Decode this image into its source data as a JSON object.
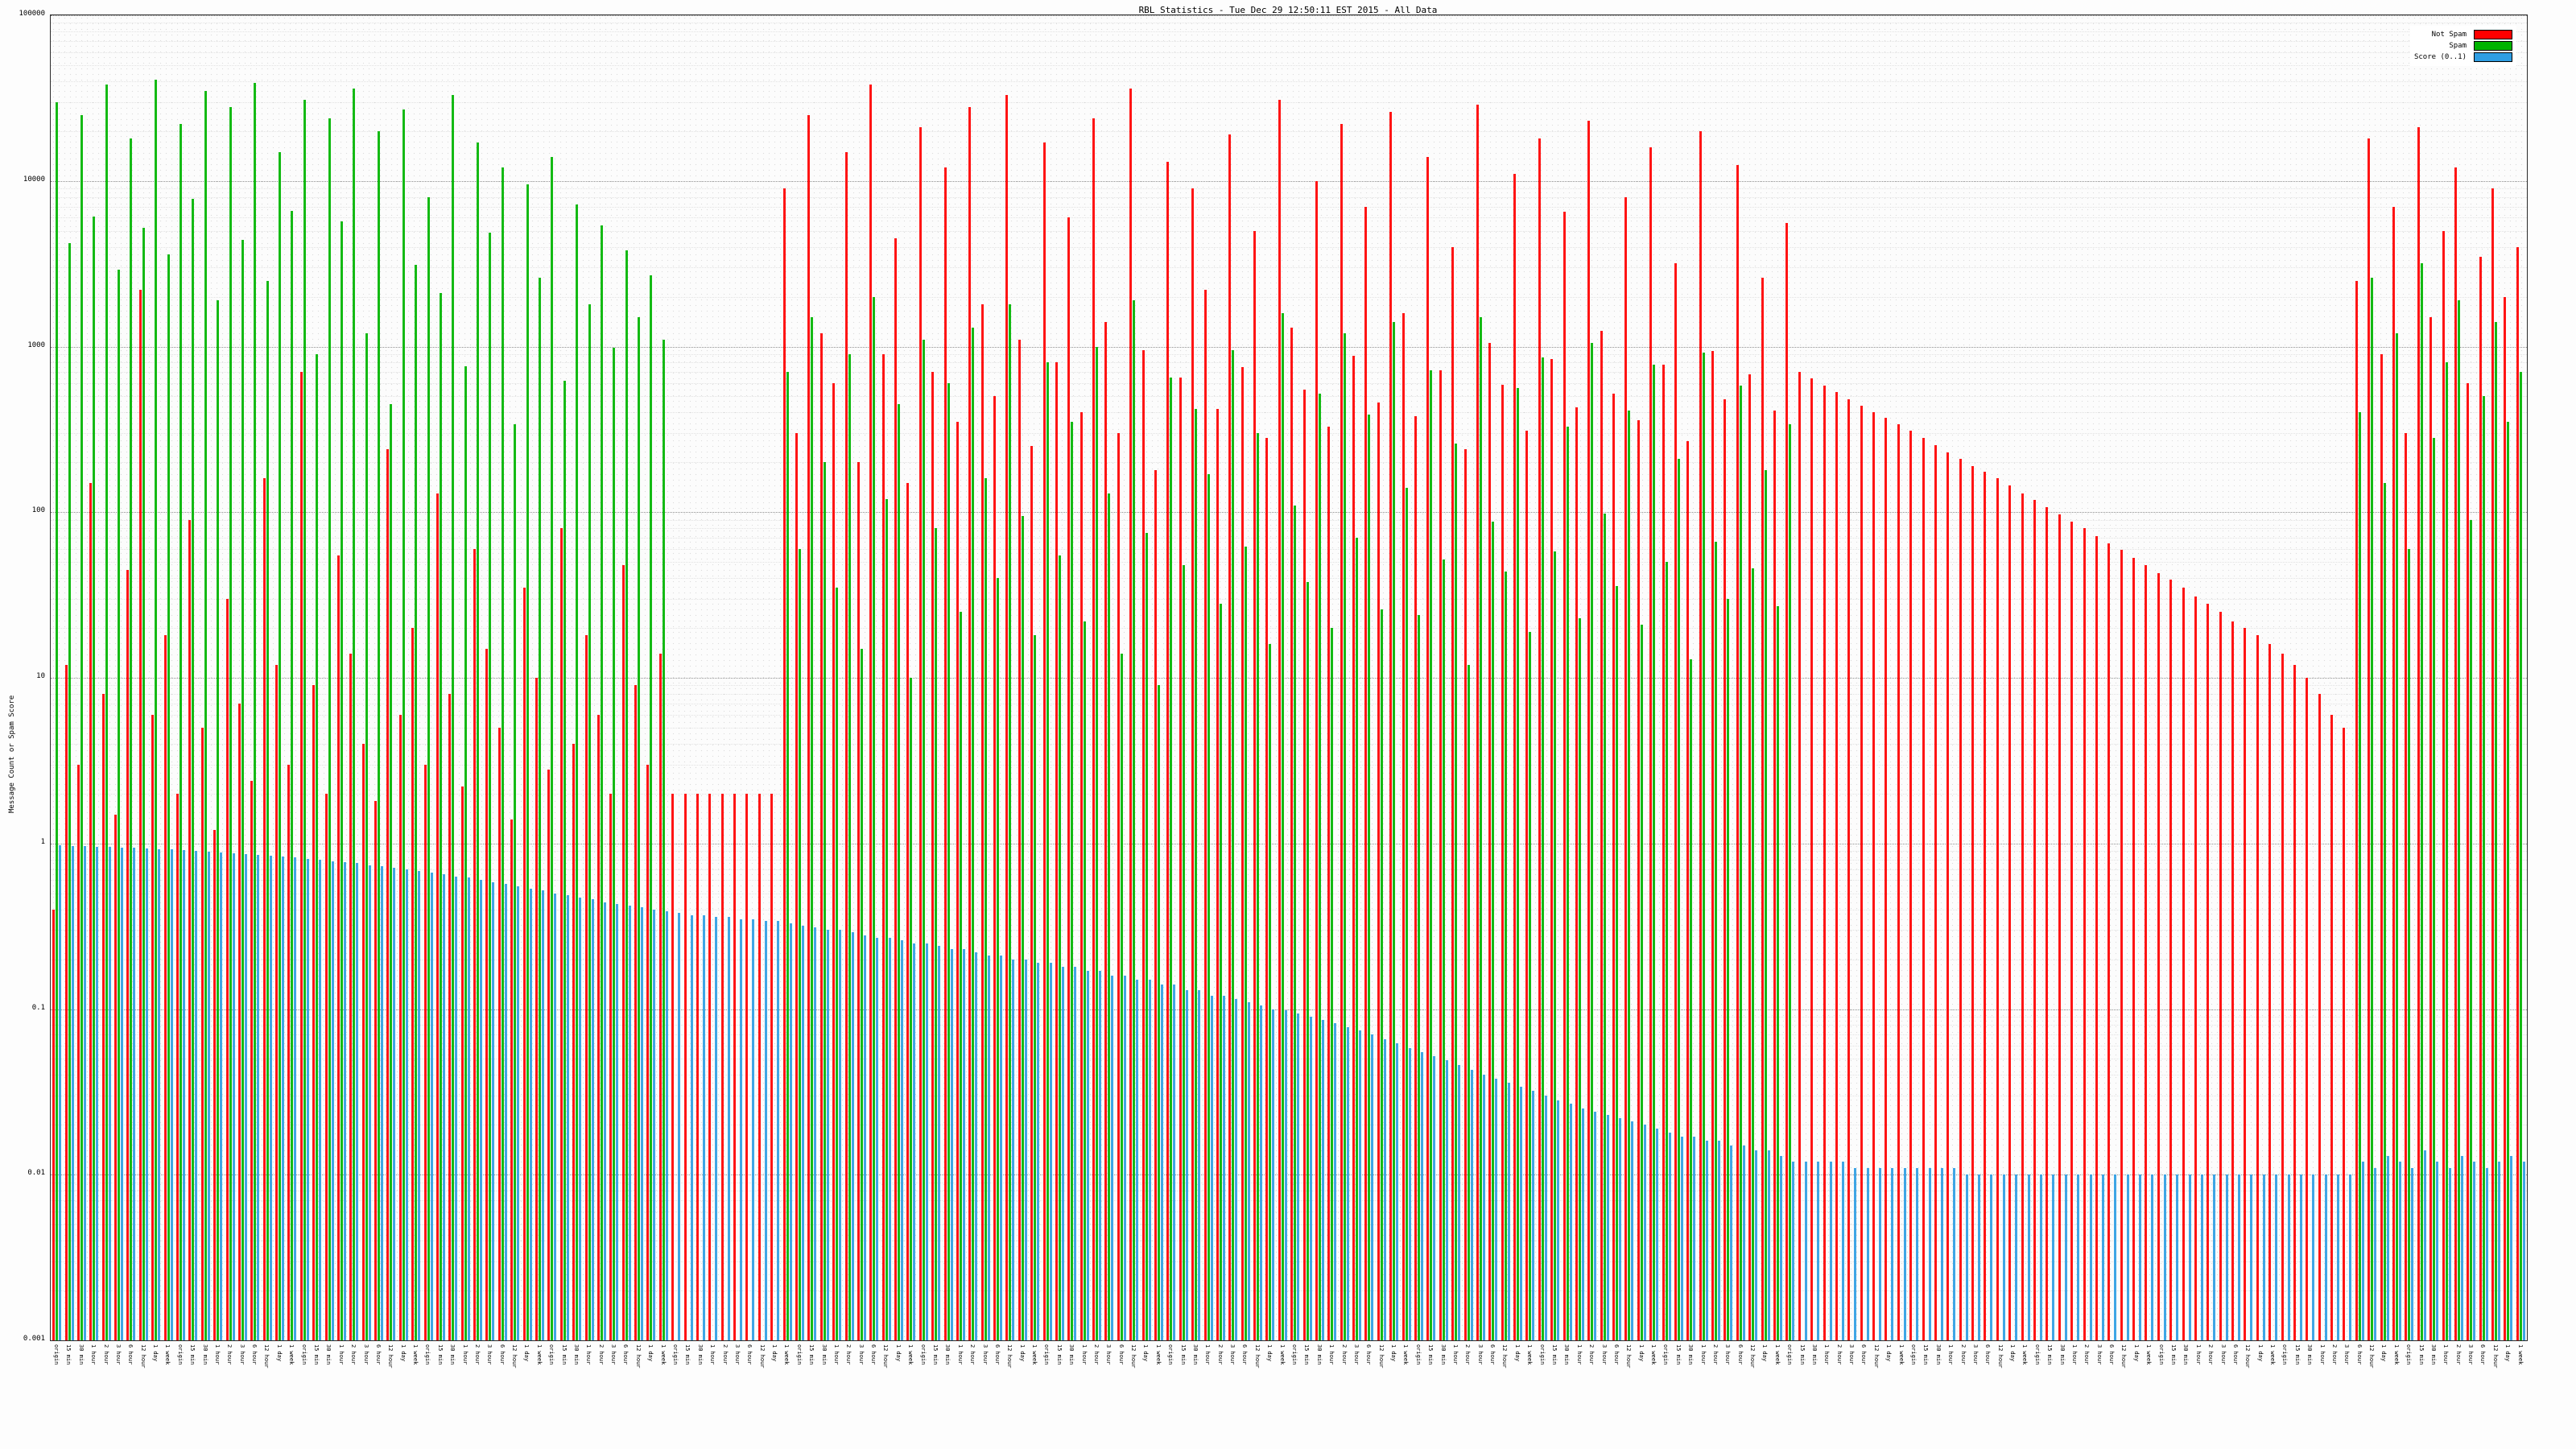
{
  "title": "RBL Statistics - Tue Dec 29 12:50:11 EST 2015 - All Data",
  "chart_data": {
    "type": "bar",
    "title": "RBL Statistics - Tue Dec 29 12:50:11 EST 2015 - All Data",
    "xlabel": "",
    "ylabel": "Message Count or Spam Score",
    "yscale": "log",
    "ylim": [
      0.001,
      100000
    ],
    "yticks": [
      "100000",
      "10000",
      "1000",
      "100",
      "10",
      "1",
      "0.1",
      "0.01",
      "0.001"
    ],
    "grid": true,
    "legend_position": "top-right",
    "categories": [
      "origin",
      "15 min",
      "30 min",
      "1 hour",
      "2 hour",
      "3 hour",
      "6 hour",
      "12 hour",
      "1 day",
      "1 week",
      "origin",
      "15 min",
      "30 min",
      "1 hour",
      "2 hour",
      "3 hour",
      "6 hour",
      "12 hour",
      "1 day",
      "1 week",
      "origin",
      "15 min",
      "30 min",
      "1 hour",
      "2 hour",
      "3 hour",
      "6 hour",
      "12 hour",
      "1 day",
      "1 week",
      "origin",
      "15 min",
      "30 min",
      "1 hour",
      "2 hour",
      "3 hour",
      "6 hour",
      "12 hour",
      "1 day",
      "1 week",
      "origin",
      "15 min",
      "30 min",
      "1 hour",
      "2 hour",
      "3 hour",
      "6 hour",
      "12 hour",
      "1 day",
      "1 week",
      "origin",
      "15 min",
      "30 min",
      "1 hour",
      "2 hour",
      "3 hour",
      "6 hour",
      "12 hour",
      "1 day",
      "1 week",
      "origin",
      "15 min",
      "30 min",
      "1 hour",
      "2 hour",
      "3 hour",
      "6 hour",
      "12 hour",
      "1 day",
      "1 week",
      "origin",
      "15 min",
      "30 min",
      "1 hour",
      "2 hour",
      "3 hour",
      "6 hour",
      "12 hour",
      "1 day",
      "1 week",
      "origin",
      "15 min",
      "30 min",
      "1 hour",
      "2 hour",
      "3 hour",
      "6 hour",
      "12 hour",
      "1 day",
      "1 week",
      "origin",
      "15 min",
      "30 min",
      "1 hour",
      "2 hour",
      "3 hour",
      "6 hour",
      "12 hour",
      "1 day",
      "1 week",
      "origin",
      "15 min",
      "30 min",
      "1 hour",
      "2 hour",
      "3 hour",
      "6 hour",
      "12 hour",
      "1 day",
      "1 week",
      "origin",
      "15 min",
      "30 min",
      "1 hour",
      "2 hour",
      "3 hour",
      "6 hour",
      "12 hour",
      "1 day",
      "1 week",
      "origin",
      "15 min",
      "30 min",
      "1 hour",
      "2 hour",
      "3 hour",
      "6 hour",
      "12 hour",
      "1 day",
      "1 week",
      "origin",
      "15 min",
      "30 min",
      "1 hour",
      "2 hour",
      "3 hour",
      "6 hour",
      "12 hour",
      "1 day",
      "1 week",
      "origin",
      "15 min",
      "30 min",
      "1 hour",
      "2 hour",
      "3 hour",
      "6 hour",
      "12 hour",
      "1 day",
      "1 week",
      "origin",
      "15 min",
      "30 min",
      "1 hour",
      "2 hour",
      "3 hour",
      "6 hour",
      "12 hour",
      "1 day",
      "1 week",
      "origin",
      "15 min",
      "30 min",
      "1 hour",
      "2 hour",
      "3 hour",
      "6 hour",
      "12 hour",
      "1 day",
      "1 week",
      "origin",
      "15 min",
      "30 min",
      "1 hour",
      "2 hour",
      "3 hour",
      "6 hour",
      "12 hour",
      "1 day",
      "1 week",
      "origin",
      "15 min",
      "30 min",
      "1 hour",
      "2 hour",
      "3 hour",
      "6 hour",
      "12 hour",
      "1 day",
      "1 week",
      "origin",
      "15 min",
      "30 min",
      "1 hour",
      "2 hour",
      "3 hour",
      "6 hour",
      "12 hour",
      "1 day",
      "1 week"
    ],
    "series": [
      {
        "name": "Not Spam",
        "color": "#ff0000",
        "values": [
          0.4,
          12,
          3,
          150,
          8,
          1.5,
          45,
          2200,
          6,
          18,
          2,
          90,
          5,
          1.2,
          30,
          7,
          2.4,
          160,
          12,
          3,
          700,
          9,
          2,
          55,
          14,
          4,
          1.8,
          240,
          6,
          20,
          3,
          130,
          8,
          2.2,
          60,
          15,
          5,
          1.4,
          35,
          10,
          2.8,
          80,
          4,
          18,
          6,
          2,
          48,
          9,
          3,
          14,
          2,
          2,
          2,
          2,
          2,
          2,
          2,
          2,
          2,
          9000,
          300,
          25000,
          1200,
          600,
          15000,
          200,
          38000,
          900,
          4500,
          150,
          21000,
          700,
          12000,
          350,
          28000,
          1800,
          500,
          33000,
          1100,
          250,
          17000,
          800,
          6000,
          400,
          24000,
          1400,
          300,
          36000,
          950,
          180,
          13000,
          650,
          9000,
          2200,
          420,
          19000,
          750,
          5000,
          280,
          31000,
          1300,
          550,
          10000,
          330,
          22000,
          880,
          7000,
          460,
          26000,
          1600,
          380,
          14000,
          720,
          4000,
          240,
          29000,
          1050,
          590,
          11000,
          310,
          18000,
          840,
          6500,
          430,
          23000,
          1250,
          520,
          8000,
          360,
          16000,
          780,
          3200,
          270,
          20000,
          940,
          480,
          12500,
          680,
          2600,
          410,
          5600,
          700,
          640,
          580,
          530,
          480,
          440,
          400,
          370,
          340,
          310,
          280,
          255,
          230,
          210,
          190,
          175,
          160,
          145,
          130,
          118,
          107,
          97,
          88,
          80,
          72,
          65,
          59,
          53,
          48,
          43,
          39,
          35,
          31,
          28,
          25,
          22,
          20,
          18,
          16,
          14,
          12,
          10,
          8,
          6,
          5,
          2500,
          18000,
          900,
          7000,
          300,
          21000,
          1500,
          5000,
          12000,
          600,
          3500,
          9000,
          2000,
          4000
        ]
      },
      {
        "name": "Spam",
        "color": "#00b400",
        "values": [
          30000,
          4200,
          25000,
          6100,
          38000,
          2900,
          18000,
          5200,
          41000,
          3600,
          22000,
          7800,
          35000,
          1900,
          28000,
          4400,
          39000,
          2500,
          15000,
          6600,
          31000,
          900,
          24000,
          5700,
          36000,
          1200,
          20000,
          450,
          27000,
          3100,
          8000,
          2100,
          33000,
          760,
          17000,
          4900,
          12000,
          340,
          9500,
          2600,
          14000,
          620,
          7200,
          1800,
          5400,
          980,
          3800,
          1500,
          2700,
          1100,
          0,
          0,
          0,
          0,
          0,
          0,
          0,
          0,
          0,
          700,
          60,
          1500,
          200,
          35,
          900,
          15,
          2000,
          120,
          450,
          10,
          1100,
          80,
          600,
          25,
          1300,
          160,
          40,
          1800,
          95,
          18,
          800,
          55,
          350,
          22,
          1000,
          130,
          14,
          1900,
          75,
          9,
          650,
          48,
          420,
          170,
          28,
          950,
          62,
          300,
          16,
          1600,
          110,
          38,
          520,
          20,
          1200,
          70,
          390,
          26,
          1400,
          140,
          24,
          720,
          52,
          260,
          12,
          1500,
          88,
          44,
          560,
          19,
          860,
          58,
          330,
          23,
          1050,
          98,
          36,
          410,
          21,
          780,
          50,
          210,
          13,
          920,
          66,
          30,
          580,
          46,
          180,
          27,
          340,
          0,
          0,
          0,
          0,
          0,
          0,
          0,
          0,
          0,
          0,
          0,
          0,
          0,
          0,
          0,
          0,
          0,
          0,
          0,
          0,
          0,
          0,
          0,
          0,
          0,
          0,
          0,
          0,
          0,
          0,
          0,
          0,
          0,
          0,
          0,
          0,
          0,
          0,
          0,
          0,
          0,
          0,
          0,
          0,
          0,
          400,
          2600,
          150,
          1200,
          60,
          3200,
          280,
          800,
          1900,
          90,
          500,
          1400,
          350,
          700
        ]
      },
      {
        "name": "Score (0..1)",
        "color": "#2f9ee3",
        "values": [
          0.97,
          0.96,
          0.96,
          0.95,
          0.95,
          0.94,
          0.94,
          0.93,
          0.92,
          0.92,
          0.91,
          0.9,
          0.89,
          0.88,
          0.87,
          0.86,
          0.85,
          0.84,
          0.83,
          0.82,
          0.81,
          0.8,
          0.78,
          0.77,
          0.76,
          0.74,
          0.73,
          0.71,
          0.7,
          0.68,
          0.67,
          0.65,
          0.63,
          0.62,
          0.6,
          0.58,
          0.57,
          0.55,
          0.53,
          0.52,
          0.5,
          0.49,
          0.47,
          0.46,
          0.44,
          0.43,
          0.42,
          0.41,
          0.4,
          0.39,
          0.38,
          0.37,
          0.37,
          0.36,
          0.36,
          0.35,
          0.35,
          0.34,
          0.34,
          0.33,
          0.32,
          0.31,
          0.3,
          0.3,
          0.29,
          0.28,
          0.27,
          0.27,
          0.26,
          0.25,
          0.25,
          0.24,
          0.23,
          0.23,
          0.22,
          0.21,
          0.21,
          0.2,
          0.2,
          0.19,
          0.19,
          0.18,
          0.18,
          0.17,
          0.17,
          0.16,
          0.16,
          0.15,
          0.15,
          0.14,
          0.14,
          0.13,
          0.13,
          0.12,
          0.12,
          0.115,
          0.11,
          0.105,
          0.1,
          0.098,
          0.094,
          0.09,
          0.086,
          0.082,
          0.078,
          0.074,
          0.07,
          0.066,
          0.062,
          0.058,
          0.055,
          0.052,
          0.049,
          0.046,
          0.043,
          0.04,
          0.038,
          0.036,
          0.034,
          0.032,
          0.03,
          0.028,
          0.027,
          0.025,
          0.024,
          0.023,
          0.022,
          0.021,
          0.02,
          0.019,
          0.018,
          0.017,
          0.017,
          0.016,
          0.016,
          0.015,
          0.015,
          0.014,
          0.014,
          0.013,
          0.012,
          0.012,
          0.012,
          0.012,
          0.012,
          0.011,
          0.011,
          0.011,
          0.011,
          0.011,
          0.011,
          0.011,
          0.011,
          0.011,
          0.01,
          0.01,
          0.01,
          0.01,
          0.01,
          0.01,
          0.01,
          0.01,
          0.01,
          0.01,
          0.01,
          0.01,
          0.01,
          0.01,
          0.01,
          0.01,
          0.01,
          0.01,
          0.01,
          0.01,
          0.01,
          0.01,
          0.01,
          0.01,
          0.01,
          0.01,
          0.01,
          0.01,
          0.01,
          0.01,
          0.01,
          0.01,
          0.012,
          0.011,
          0.013,
          0.012,
          0.011,
          0.014,
          0.012,
          0.011,
          0.013,
          0.012,
          0.011,
          0.012,
          0.013,
          0.012
        ]
      }
    ]
  }
}
